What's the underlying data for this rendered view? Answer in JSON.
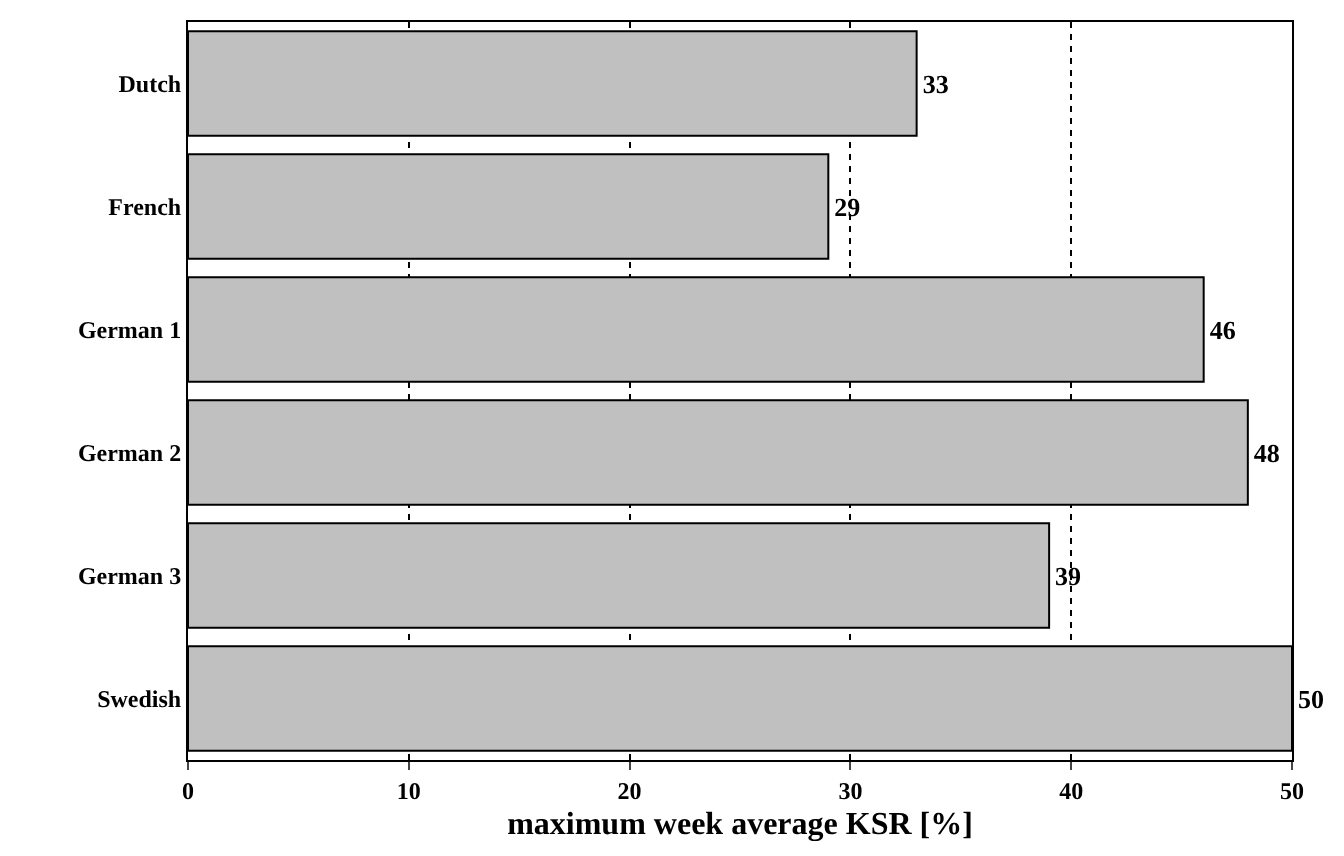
{
  "chart_data": {
    "type": "bar",
    "orientation": "horizontal",
    "xlabel": "maximum week average KSR [%]",
    "categories": [
      "Dutch",
      "French",
      "German 1",
      "German 2",
      "German 3",
      "Swedish"
    ],
    "values": [
      33,
      29,
      46,
      48,
      39,
      50
    ],
    "color": "#c0c0c0",
    "xlim": [
      0,
      50
    ],
    "xticks": [
      0,
      10,
      20,
      30,
      40,
      50
    ],
    "grid": "x",
    "data_labels": true,
    "legend": false
  }
}
